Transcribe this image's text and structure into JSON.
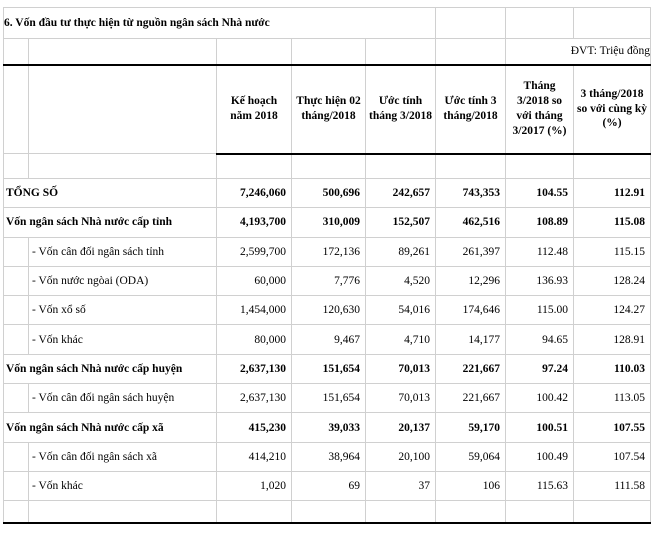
{
  "title": "6. Vốn đầu tư thực hiện từ nguồn ngân sách Nhà nước",
  "unit_note": "ĐVT: Triệu đồng",
  "colors": {
    "gridline": "#d0d0d0",
    "border": "#000000",
    "text": "#000000",
    "background": "#ffffff"
  },
  "table": {
    "columns": [
      "Kế hoạch năm 2018",
      "Thực hiện 02 tháng/2018",
      "Ước tính tháng 3/2018",
      "Ước tính 3 tháng/2018",
      "Tháng 3/2018 so với tháng 3/2017 (%)",
      "3 tháng/2018 so với cùng kỳ (%)"
    ],
    "rows": [
      {
        "label": "TỔNG SỐ",
        "bold": true,
        "indent": false,
        "values": [
          "7,246,060",
          "500,696",
          "242,657",
          "743,353",
          "104.55",
          "112.91"
        ]
      },
      {
        "label": "Vốn ngân sách Nhà nước cấp tỉnh",
        "bold": true,
        "indent": false,
        "values": [
          "4,193,700",
          "310,009",
          "152,507",
          "462,516",
          "108.89",
          "115.08"
        ]
      },
      {
        "label": "- Vốn cân đối ngân sách tỉnh",
        "bold": false,
        "indent": true,
        "values": [
          "2,599,700",
          "172,136",
          "89,261",
          "261,397",
          "112.48",
          "115.15"
        ]
      },
      {
        "label": "- Vốn nước ngòai (ODA)",
        "bold": false,
        "indent": true,
        "values": [
          "60,000",
          "7,776",
          "4,520",
          "12,296",
          "136.93",
          "128.24"
        ]
      },
      {
        "label": "- Vốn xổ số",
        "bold": false,
        "indent": true,
        "values": [
          "1,454,000",
          "120,630",
          "54,016",
          "174,646",
          "115.00",
          "124.27"
        ]
      },
      {
        "label": "- Vốn khác",
        "bold": false,
        "indent": true,
        "values": [
          "80,000",
          "9,467",
          "4,710",
          "14,177",
          "94.65",
          "128.91"
        ]
      },
      {
        "label": "Vốn ngân sách Nhà nước cấp huyện",
        "bold": true,
        "indent": false,
        "values": [
          "2,637,130",
          "151,654",
          "70,013",
          "221,667",
          "97.24",
          "110.03"
        ]
      },
      {
        "label": "- Vốn cân đối ngân sách huyện",
        "bold": false,
        "indent": true,
        "values": [
          "2,637,130",
          "151,654",
          "70,013",
          "221,667",
          "100.42",
          "113.05"
        ]
      },
      {
        "label": "Vốn ngân sách Nhà nước cấp xã",
        "bold": true,
        "indent": false,
        "values": [
          "415,230",
          "39,033",
          "20,137",
          "59,170",
          "100.51",
          "107.55"
        ]
      },
      {
        "label": "- Vốn cân đối ngân sách xã",
        "bold": false,
        "indent": true,
        "values": [
          "414,210",
          "38,964",
          "20,100",
          "59,064",
          "100.49",
          "107.54"
        ]
      },
      {
        "label": "- Vốn khác",
        "bold": false,
        "indent": true,
        "values": [
          "1,020",
          "69",
          "37",
          "106",
          "115.63",
          "111.58"
        ]
      }
    ]
  }
}
